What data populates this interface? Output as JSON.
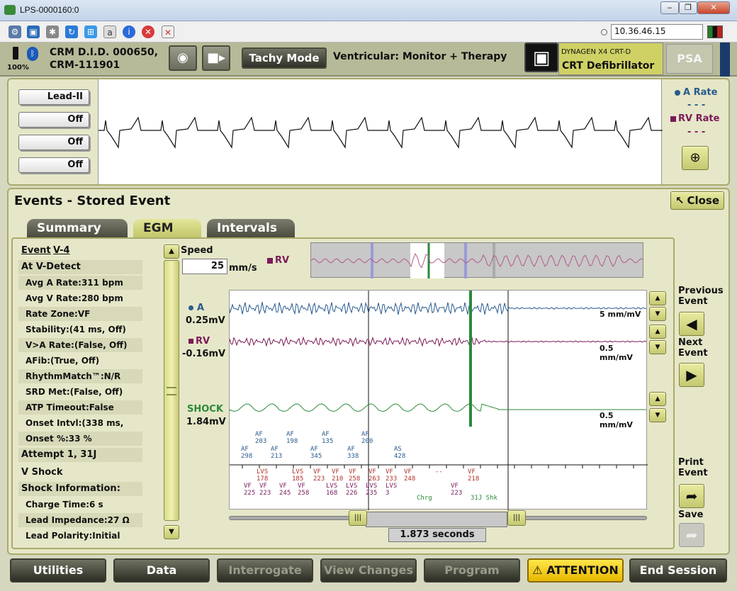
{
  "window": {
    "title": "LPS-0000160:0",
    "minimize": "‒",
    "restore": "❐",
    "close": "✕"
  },
  "toolbar": {
    "ip": "10.36.46.15"
  },
  "header": {
    "battery": "100%",
    "device_id": "CRM D.I.D. 000650,",
    "serial": "CRM-111901",
    "tachy_mode": "Tachy Mode",
    "therapy": "Ventricular: Monitor + Therapy",
    "device_model": "DYNAGEN X4 CRT-D",
    "device_type": "CRT Defibrillator",
    "psa": "PSA"
  },
  "ecg": {
    "leads": [
      "Lead-II",
      "Off",
      "Off",
      "Off"
    ],
    "a_rate_label": "A Rate",
    "a_rate_value": "- - -",
    "rv_rate_label": "RV Rate",
    "rv_rate_value": "- - -",
    "colors": {
      "a": "#2a5a8c",
      "rv": "#7a1a5a",
      "shock": "#2a8a3a"
    }
  },
  "events": {
    "title": "Events - Stored Event",
    "close": "Close",
    "tabs": [
      "Summary",
      "EGM",
      "Intervals"
    ]
  },
  "summary": {
    "event_label": "Event",
    "event_id": "V-4",
    "at_v_detect": "At V-Detect",
    "fields": [
      {
        "k": "Avg A Rate:",
        "v": "311  bpm"
      },
      {
        "k": "Avg V Rate:",
        "v": "280  bpm"
      },
      {
        "k": "Rate Zone:",
        "v": "VF"
      },
      {
        "k": "Stability:",
        "v": "(41 ms, Off)"
      },
      {
        "k": "V>A Rate:",
        "v": "(False, Off)"
      },
      {
        "k": "AFib:",
        "v": "(True, Off)"
      },
      {
        "k": "RhythmMatch™:",
        "v": "N/R"
      },
      {
        "k": "SRD Met:",
        "v": "(False, Off)"
      },
      {
        "k": "ATP Timeout:",
        "v": "False"
      },
      {
        "k": "Onset Intvl:",
        "v": "(338 ms, Off)"
      },
      {
        "k": "Onset %:",
        "v": "33 %"
      }
    ],
    "attempt": "Attempt 1, 31J",
    "v_shock": "V Shock",
    "shock_info": "Shock Information:",
    "shock_fields": [
      {
        "k": "Charge Time:",
        "v": "6  s"
      },
      {
        "k": "Lead Impedance:",
        "v": "27  Ω"
      },
      {
        "k": "Lead Polarity:",
        "v": "Initial"
      }
    ]
  },
  "egm": {
    "speed_label": "Speed",
    "speed_value": "25",
    "speed_unit": "mm/s",
    "rv_legend": "RV",
    "channels": [
      {
        "name": "A",
        "value": "0.25mV",
        "scale": "5 mm/mV"
      },
      {
        "name": "RV",
        "value": "-0.16mV",
        "scale": "0.5 mm/mV"
      },
      {
        "name": "SHOCK",
        "value": "1.84mV",
        "scale": "0.5 mm/mV"
      }
    ],
    "markers_top": [
      {
        "t": "AF",
        "n": "203"
      },
      {
        "t": "AF",
        "n": "198"
      },
      {
        "t": "AF",
        "n": "135"
      },
      {
        "t": "AF",
        "n": "200"
      }
    ],
    "markers_mid": [
      {
        "t": "AF",
        "n": "298"
      },
      {
        "t": "AF",
        "n": "213"
      },
      {
        "t": "AF",
        "n": "345"
      },
      {
        "t": "AF",
        "n": "338"
      },
      {
        "t": "AS",
        "n": "428"
      }
    ],
    "markers_v1": [
      {
        "t": "LVS",
        "n": "178"
      },
      {
        "t": "LVS",
        "n": "185"
      },
      {
        "t": "VF",
        "n": "223"
      },
      {
        "t": "VF",
        "n": "210"
      },
      {
        "t": "VF",
        "n": "258"
      },
      {
        "t": "VF",
        "n": "263"
      },
      {
        "t": "VF",
        "n": "233"
      },
      {
        "t": "VF",
        "n": "248"
      },
      {
        "t": "--",
        "n": ""
      },
      {
        "t": "VF",
        "n": "218"
      }
    ],
    "markers_v2": [
      {
        "t": "VF",
        "n": "225"
      },
      {
        "t": "VF",
        "n": "223"
      },
      {
        "t": "VF",
        "n": "245"
      },
      {
        "t": "VF",
        "n": "258"
      },
      {
        "t": "LVS",
        "n": "168"
      },
      {
        "t": "LVS",
        "n": "226"
      },
      {
        "t": "LVS",
        "n": "235"
      },
      {
        "t": "LVS",
        "n": "3"
      },
      {
        "t": "VF",
        "n": "223"
      }
    ],
    "chrg": "Chrg",
    "shk": "31J Shk",
    "duration": "1.873 seconds"
  },
  "nav": {
    "prev": "Previous Event",
    "next": "Next Event",
    "print": "Print Event",
    "save": "Save"
  },
  "bottom": {
    "utilities": "Utilities",
    "data": "Data",
    "interrogate": "Interrogate",
    "view_changes": "View Changes",
    "program": "Program",
    "attention": "ATTENTION",
    "end": "End Session"
  }
}
